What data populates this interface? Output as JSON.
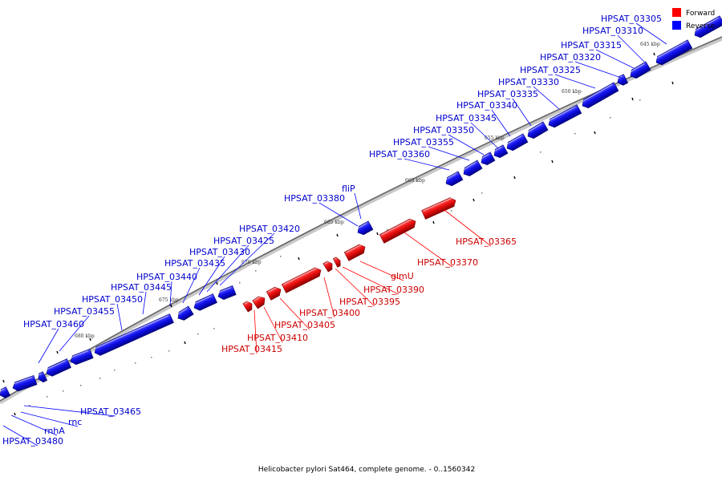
{
  "caption": "Helicobacter pylori Sat464, complete genome. - 0..1560342",
  "legend": [
    {
      "label": "Forward",
      "color": "#ff0000"
    },
    {
      "label": "Reverse",
      "color": "#0000ff"
    }
  ],
  "scale_labels": [
    "645 kbp",
    "650 kbp",
    "655 kbp",
    "660 kbp",
    "665 kbp",
    "670 kbp",
    "675 kbp",
    "680 kbp"
  ],
  "reverse_genes": [
    "HPSAT_03305",
    "HPSAT_03310",
    "HPSAT_03315",
    "HPSAT_03320",
    "HPSAT_03325",
    "HPSAT_03330",
    "HPSAT_03335",
    "HPSAT_03340",
    "HPSAT_03345",
    "HPSAT_03350",
    "HPSAT_03355",
    "HPSAT_03360",
    "fliP",
    "HPSAT_03380",
    "HPSAT_03420",
    "HPSAT_03425",
    "HPSAT_03430",
    "HPSAT_03435",
    "HPSAT_03440",
    "HPSAT_03445",
    "HPSAT_03450",
    "HPSAT_03455",
    "HPSAT_03460",
    "HPSAT_03465",
    "rnc",
    "rnhA",
    "HPSAT_03480"
  ],
  "forward_genes": [
    "HPSAT_03365",
    "HPSAT_03370",
    "glmU",
    "HPSAT_03390",
    "HPSAT_03395",
    "HPSAT_03400",
    "HPSAT_03405",
    "HPSAT_03410",
    "HPSAT_03415"
  ],
  "colors": {
    "forward": "#ff0000",
    "reverse": "#0000ff",
    "forward_label": "#cc0000",
    "reverse_label": "#0000cc",
    "backbone": "#888888"
  }
}
